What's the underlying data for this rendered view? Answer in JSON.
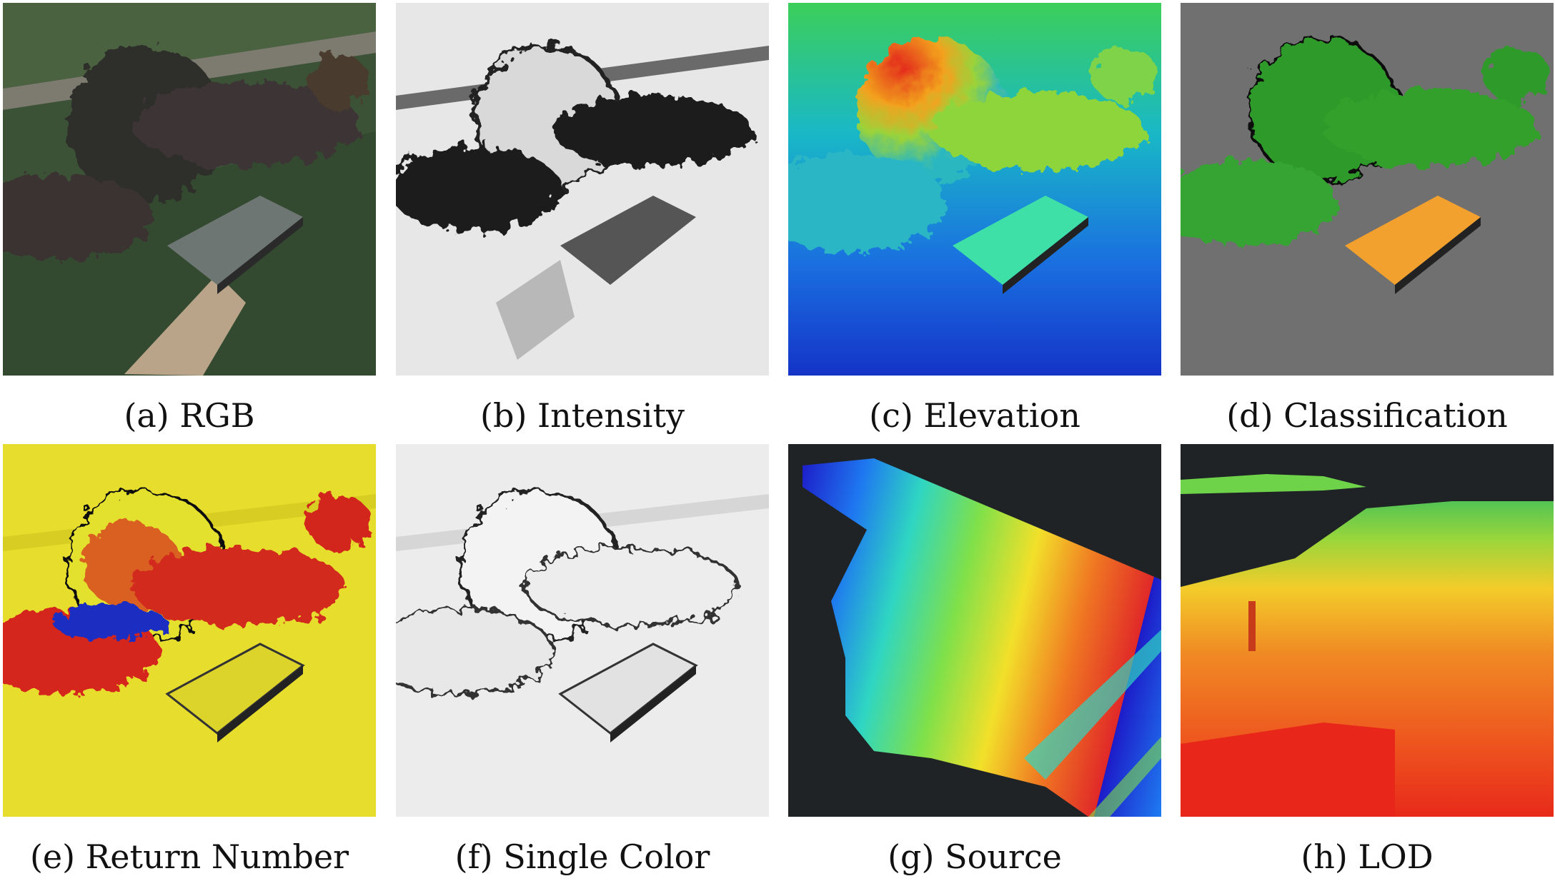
{
  "figure": {
    "panels": [
      {
        "id": "a",
        "caption": "(a) RGB"
      },
      {
        "id": "b",
        "caption": "(b) Intensity"
      },
      {
        "id": "c",
        "caption": "(c) Elevation"
      },
      {
        "id": "d",
        "caption": "(d) Classification"
      },
      {
        "id": "e",
        "caption": "(e) Return Number"
      },
      {
        "id": "f",
        "caption": "(f) Single Color"
      },
      {
        "id": "g",
        "caption": "(g) Source"
      },
      {
        "id": "h",
        "caption": "(h) LOD"
      }
    ]
  }
}
